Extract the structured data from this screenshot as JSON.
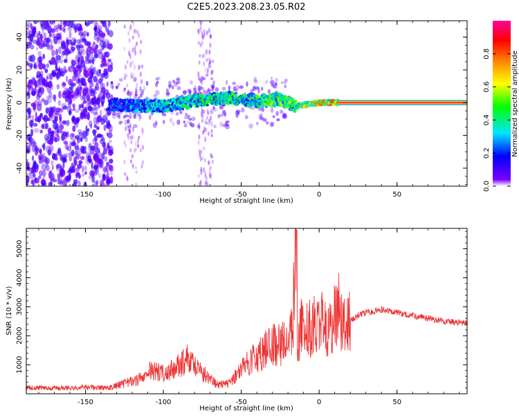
{
  "title": "C2E5.2023.208.23.05.R02",
  "chart_data": [
    {
      "type": "heatmap",
      "name": "spectrogram",
      "xlabel": "Height of straight line (km)",
      "ylabel": "Frequency (Hz)",
      "xlim": [
        -188,
        95
      ],
      "ylim": [
        -51,
        50
      ],
      "x_ticks": [
        -150,
        -100,
        -50,
        0,
        50
      ],
      "y_ticks": [
        -40,
        -20,
        0,
        20,
        40
      ],
      "colorbar": {
        "label": "Normalized spectral amplitude",
        "range": [
          0.0,
          1.0
        ],
        "ticks": [
          0.0,
          0.2,
          0.4,
          0.6,
          0.8
        ],
        "colors": [
          "#ffffff",
          "#7a00ff",
          "#0000ff",
          "#00e5ff",
          "#00ff00",
          "#ffff00",
          "#ff8000",
          "#ff0000",
          "#ff0099"
        ]
      },
      "trace": [
        {
          "x": -135,
          "y": -1,
          "amp": 0.25
        },
        {
          "x": -120,
          "y": -2,
          "amp": 0.3
        },
        {
          "x": -100,
          "y": -2,
          "amp": 0.4
        },
        {
          "x": -80,
          "y": 1,
          "amp": 0.45
        },
        {
          "x": -60,
          "y": 3,
          "amp": 0.5
        },
        {
          "x": -40,
          "y": 1,
          "amp": 0.5
        },
        {
          "x": -25,
          "y": 2,
          "amp": 0.55
        },
        {
          "x": -15,
          "y": -2,
          "amp": 0.55
        },
        {
          "x": 0,
          "y": 0,
          "amp": 0.8
        },
        {
          "x": 12,
          "y": 0,
          "amp": 0.85
        },
        {
          "x": 95,
          "y": 0,
          "amp": 0.9
        }
      ]
    },
    {
      "type": "line",
      "name": "snr",
      "xlabel": "Height of straight line (km)",
      "ylabel": "SNR (10 * v/v)",
      "xlim": [
        -188,
        95
      ],
      "ylim": [
        0,
        5700
      ],
      "x_ticks": [
        -150,
        -100,
        -50,
        0,
        50
      ],
      "y_ticks": [
        1000,
        2000,
        3000,
        4000,
        5000
      ],
      "color": "#ee3333",
      "x": [
        -188,
        -170,
        -150,
        -135,
        -125,
        -115,
        -108,
        -100,
        -92,
        -85,
        -78,
        -72,
        -65,
        -58,
        -50,
        -45,
        -40,
        -35,
        -30,
        -25,
        -20,
        -17,
        -15,
        -14,
        -12,
        -8,
        -4,
        0,
        5,
        10,
        12,
        15,
        20,
        25,
        30,
        40,
        50,
        60,
        70,
        80,
        95
      ],
      "y": [
        200,
        200,
        220,
        200,
        350,
        500,
        800,
        700,
        900,
        1200,
        900,
        600,
        300,
        350,
        800,
        1100,
        1300,
        1500,
        1700,
        1700,
        2000,
        2200,
        5600,
        1500,
        2300,
        2200,
        2300,
        2600,
        2200,
        2600,
        3100,
        2200,
        2500,
        2700,
        2800,
        2900,
        2800,
        2700,
        2600,
        2500,
        2450
      ]
    }
  ]
}
